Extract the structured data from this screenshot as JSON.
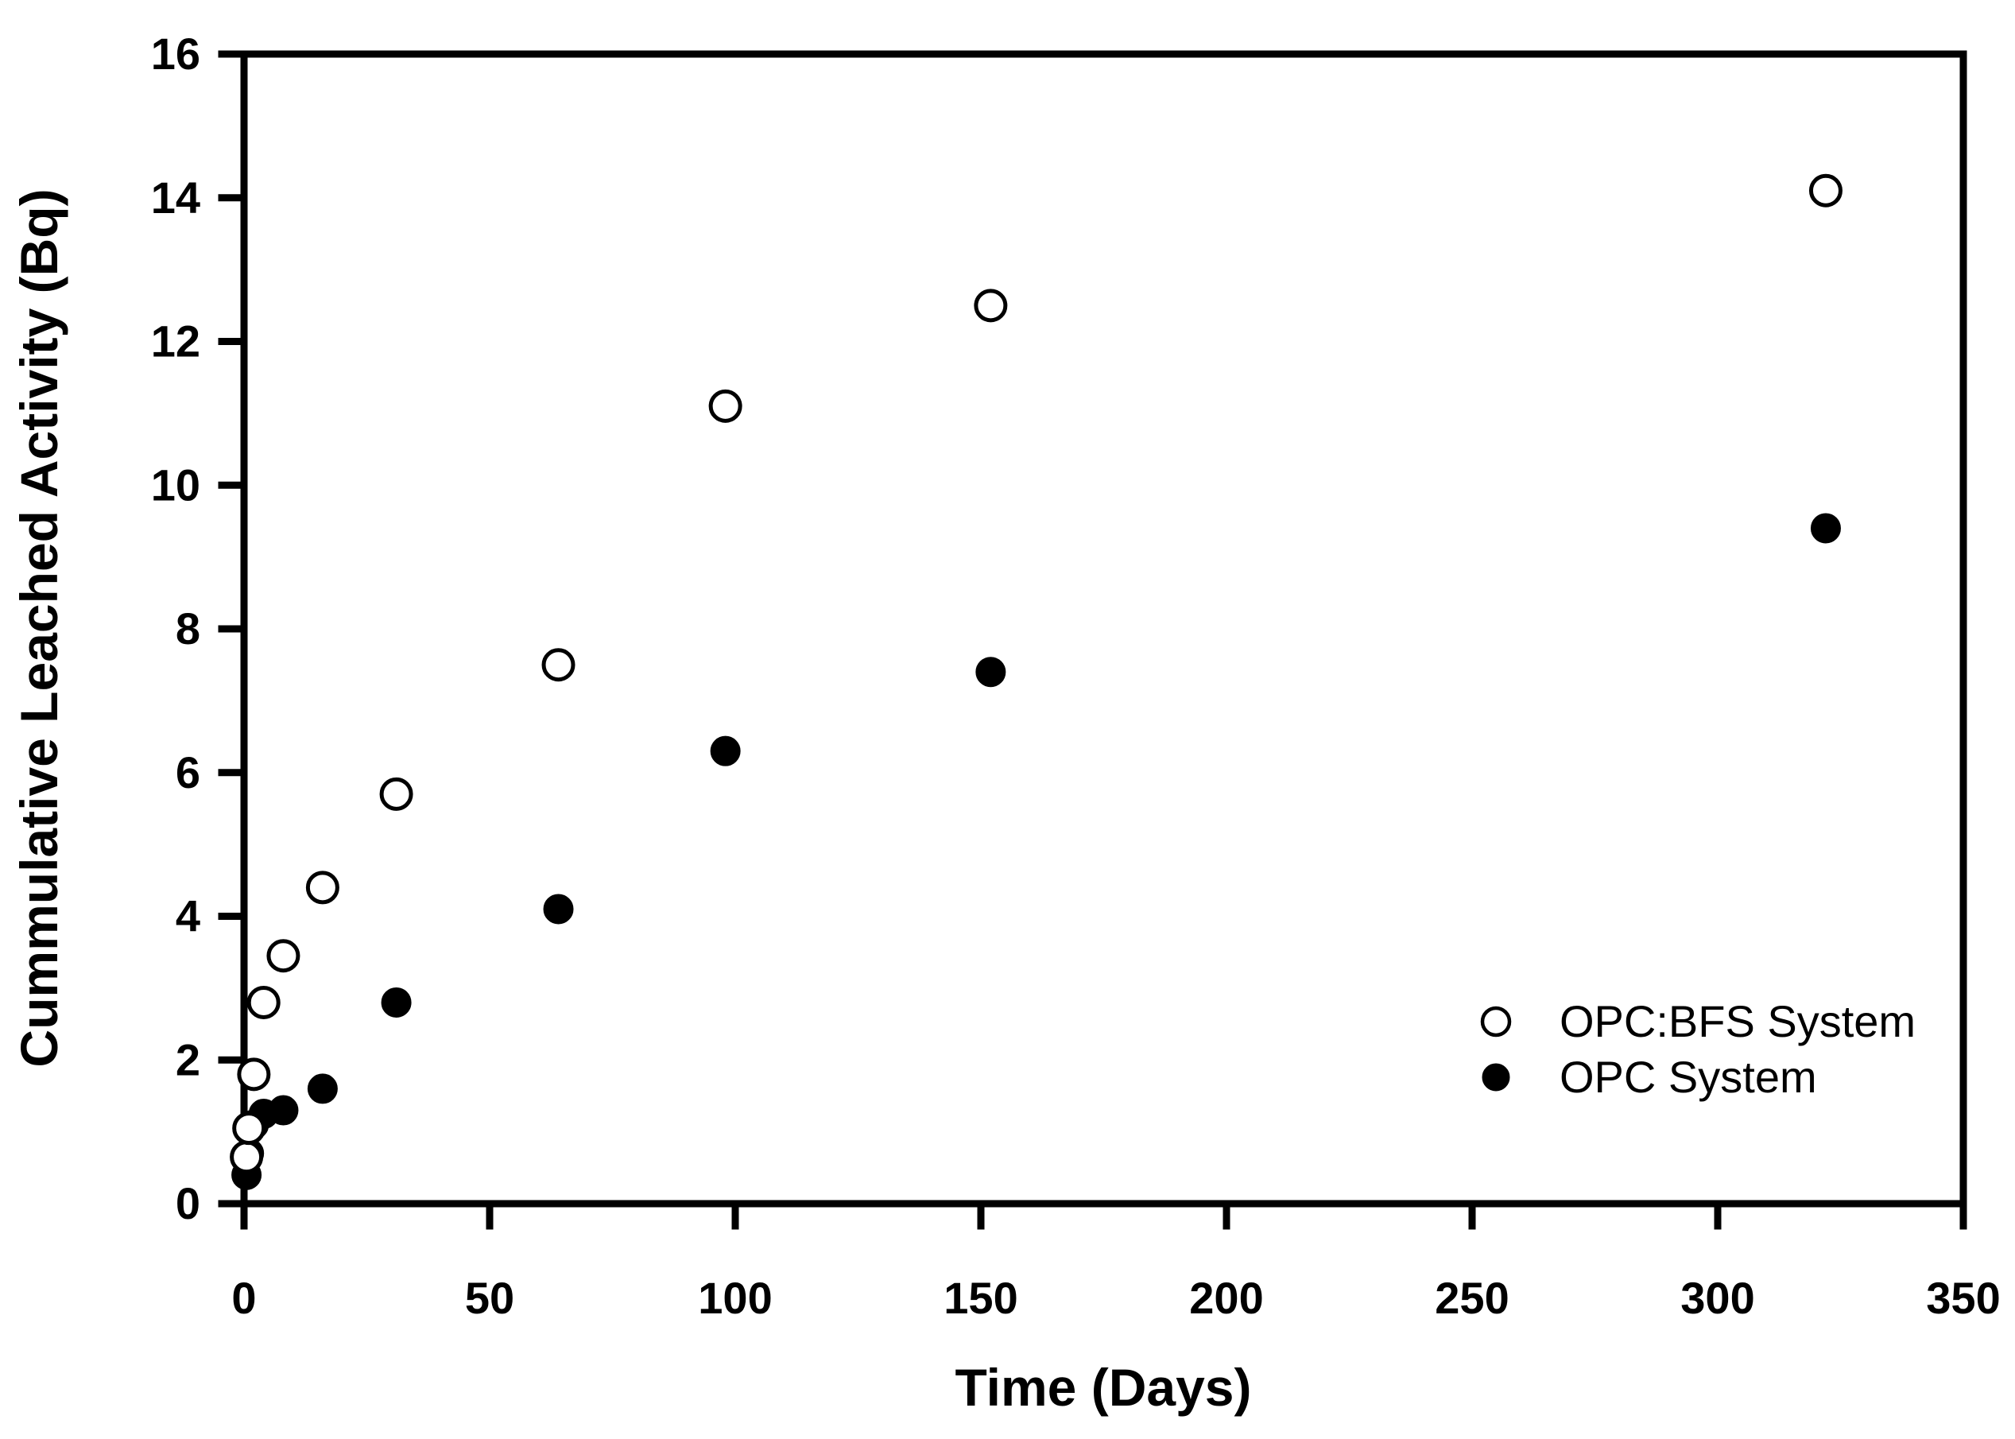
{
  "figure": {
    "background": "#ffffff",
    "ink_color": "#000000",
    "marker_fill_open": "#ffffff"
  },
  "chart_data": {
    "type": "scatter",
    "title": "",
    "xlabel": "Time (Days)",
    "ylabel": "Cummulative Leached Activity (Bq)",
    "xlim": [
      0,
      350
    ],
    "ylim": [
      0,
      16
    ],
    "xticks": [
      0,
      50,
      100,
      150,
      200,
      250,
      300,
      350
    ],
    "yticks": [
      0,
      2,
      4,
      6,
      8,
      10,
      12,
      14,
      16
    ],
    "grid": false,
    "frame": true,
    "series": [
      {
        "name": "OPC System",
        "marker": "filled-circle",
        "points": [
          [
            0.5,
            0.4
          ],
          [
            1,
            0.7
          ],
          [
            2,
            1.1
          ],
          [
            4,
            1.25
          ],
          [
            8,
            1.3
          ],
          [
            16,
            1.6
          ],
          [
            31,
            2.8
          ],
          [
            64,
            4.1
          ],
          [
            98,
            6.3
          ],
          [
            152,
            7.4
          ],
          [
            322,
            9.4
          ]
        ]
      },
      {
        "name": "OPC:BFS System",
        "marker": "open-circle",
        "points": [
          [
            0.5,
            0.65
          ],
          [
            1,
            1.05
          ],
          [
            2,
            1.8
          ],
          [
            4,
            2.8
          ],
          [
            8,
            3.45
          ],
          [
            16,
            4.4
          ],
          [
            31,
            5.7
          ],
          [
            64,
            7.5
          ],
          [
            98,
            11.1
          ],
          [
            152,
            12.5
          ],
          [
            322,
            14.1
          ]
        ]
      }
    ],
    "legend": {
      "position": "inside-right",
      "items": [
        {
          "label": "OPC:BFS System",
          "marker": "open-circle"
        },
        {
          "label": "OPC System",
          "marker": "filled-circle"
        }
      ]
    }
  }
}
